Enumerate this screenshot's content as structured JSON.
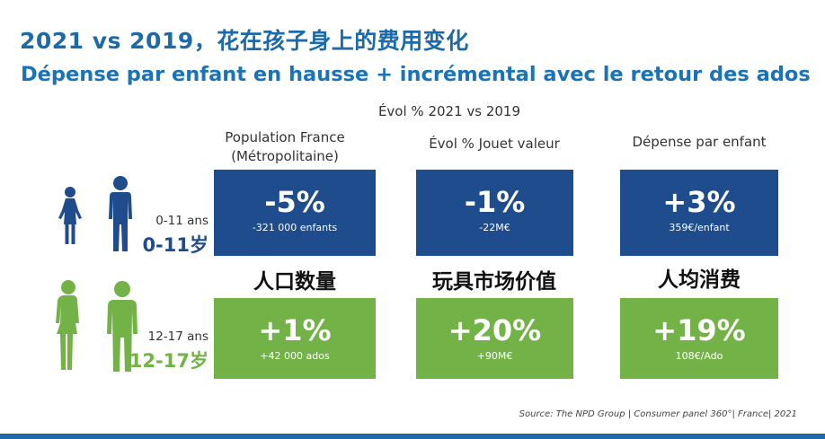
{
  "title_cn": "2021 vs 2019，花在孩子身上的费用变化",
  "title_fr": "Dépense par enfant en hausse + incrémental avec le retour des ados",
  "evol_header": "Évol % 2021 vs 2019",
  "columns": [
    {
      "head_line1": "Population France",
      "head_line2": "(Métropolitaine)",
      "cn": "人口数量"
    },
    {
      "head_line1": "Évol % Jouet valeur",
      "head_line2": "",
      "cn": "玩具市场价值"
    },
    {
      "head_line1": "Dépense par enfant",
      "head_line2": "",
      "cn": "人均消费"
    }
  ],
  "rows": [
    {
      "age_fr": "0-11 ans",
      "age_cn": "0-11岁",
      "color": "#1e4c8c",
      "tiles": [
        {
          "pct": "-5%",
          "sub": "-321 000 enfants"
        },
        {
          "pct": "-1%",
          "sub": "-22M€"
        },
        {
          "pct": "+3%",
          "sub": "359€/enfant"
        }
      ]
    },
    {
      "age_fr": "12-17 ans",
      "age_cn": "12-17岁",
      "color": "#72b246",
      "tiles": [
        {
          "pct": "+1%",
          "sub": "+42 000 ados"
        },
        {
          "pct": "+20%",
          "sub": "+90M€"
        },
        {
          "pct": "+19%",
          "sub": "108€/Ado"
        }
      ]
    }
  ],
  "source": "Source: The NPD Group | Consumer panel 360°| France| 2021",
  "icons": [
    "girl-silhouette-icon",
    "boy-silhouette-icon",
    "teen-girl-silhouette-icon",
    "teen-boy-silhouette-icon"
  ]
}
